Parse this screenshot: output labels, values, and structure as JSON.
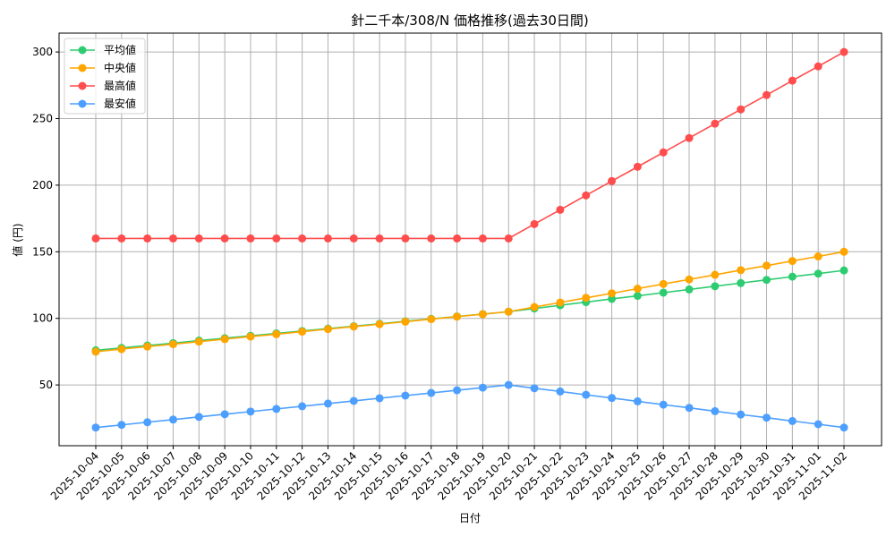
{
  "chart_data": {
    "type": "line",
    "title": "針二千本/308/N 価格推移(過去30日間)",
    "xlabel": "日付",
    "ylabel": "値 (円)",
    "ylim": [
      8,
      315
    ],
    "yticks": [
      50,
      100,
      150,
      200,
      250,
      300
    ],
    "grid": true,
    "legend_position": "upper left",
    "x": [
      "2025-10-04",
      "2025-10-05",
      "2025-10-06",
      "2025-10-07",
      "2025-10-08",
      "2025-10-09",
      "2025-10-10",
      "2025-10-11",
      "2025-10-12",
      "2025-10-13",
      "2025-10-14",
      "2025-10-15",
      "2025-10-16",
      "2025-10-17",
      "2025-10-18",
      "2025-10-19",
      "2025-10-20",
      "2025-10-21",
      "2025-10-22",
      "2025-10-23",
      "2025-10-24",
      "2025-10-25",
      "2025-10-26",
      "2025-10-27",
      "2025-10-28",
      "2025-10-29",
      "2025-10-30",
      "2025-10-31",
      "2025-11-01",
      "2025-11-02"
    ],
    "series": [
      {
        "name": "平均値",
        "color": "#2ecc71",
        "values": [
          76,
          77.8,
          79.6,
          81.4,
          83.3,
          85.1,
          86.9,
          88.7,
          90.5,
          92.3,
          94.1,
          95.9,
          97.8,
          99.6,
          101.4,
          103.2,
          105,
          107.4,
          109.8,
          112.2,
          114.6,
          116.9,
          119.3,
          121.7,
          124.1,
          126.5,
          128.9,
          131.3,
          133.6,
          136
        ]
      },
      {
        "name": "中央値",
        "color": "#ffa500",
        "values": [
          75,
          76.9,
          78.8,
          80.6,
          82.5,
          84.4,
          86.3,
          88.1,
          90,
          91.9,
          93.8,
          95.6,
          97.5,
          99.4,
          101.3,
          103.1,
          105,
          108.5,
          111.9,
          115.4,
          118.8,
          122.3,
          125.8,
          129.2,
          132.7,
          136.2,
          139.6,
          143.1,
          146.5,
          150
        ]
      },
      {
        "name": "最高値",
        "color": "#ff4d4d",
        "values": [
          160,
          160,
          160,
          160,
          160,
          160,
          160,
          160,
          160,
          160,
          160,
          160,
          160,
          160,
          160,
          160,
          160,
          170.8,
          181.5,
          192.3,
          203.1,
          213.8,
          224.6,
          235.4,
          246.2,
          256.9,
          267.7,
          278.5,
          289.2,
          300
        ]
      },
      {
        "name": "最安値",
        "color": "#4d9fff",
        "values": [
          18,
          20,
          22,
          24,
          26,
          28,
          30,
          32,
          34,
          36,
          38,
          40,
          42,
          44,
          46,
          48,
          50,
          47.5,
          45.1,
          42.6,
          40.2,
          37.7,
          35.2,
          32.8,
          30.3,
          27.8,
          25.4,
          22.9,
          20.5,
          18
        ]
      }
    ]
  }
}
